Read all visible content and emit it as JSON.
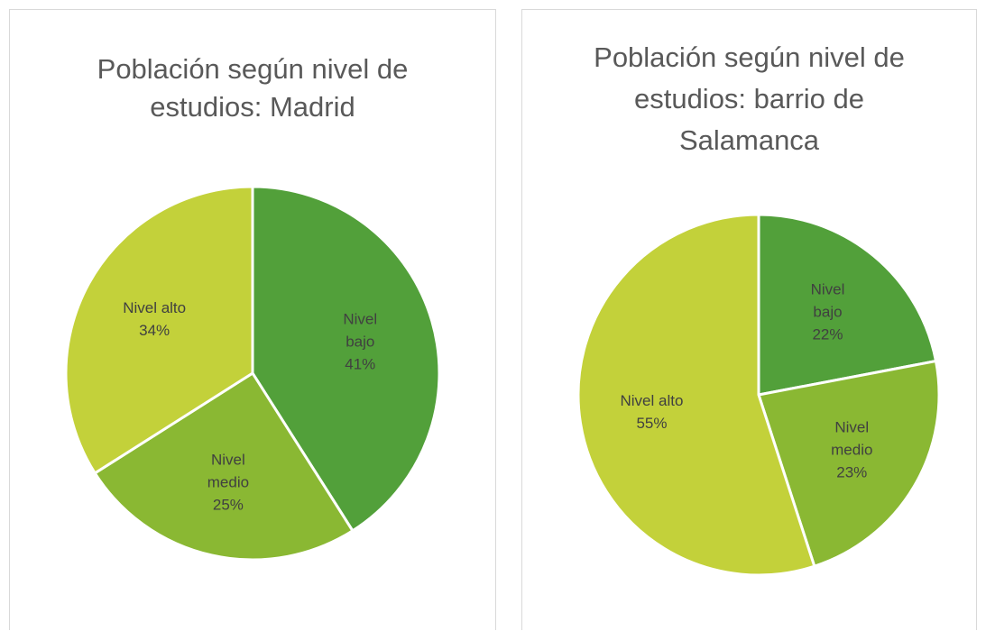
{
  "chart_data": [
    {
      "type": "pie",
      "title": "Población según nivel de estudios: Madrid",
      "categories": [
        "Nivel bajo",
        "Nivel medio",
        "Nivel alto"
      ],
      "values": [
        41,
        25,
        34
      ],
      "value_labels": [
        "41%",
        "25%",
        "34%"
      ],
      "colors": [
        "#52a03a",
        "#8ab833",
        "#c3d13a"
      ]
    },
    {
      "type": "pie",
      "title": "Población según nivel de estudios: barrio de Salamanca",
      "categories": [
        "Nivel bajo",
        "Nivel medio",
        "Nivel alto"
      ],
      "values": [
        22,
        23,
        55
      ],
      "value_labels": [
        "22%",
        "23%",
        "55%"
      ],
      "colors": [
        "#52a03a",
        "#8ab833",
        "#c3d13a"
      ]
    }
  ]
}
